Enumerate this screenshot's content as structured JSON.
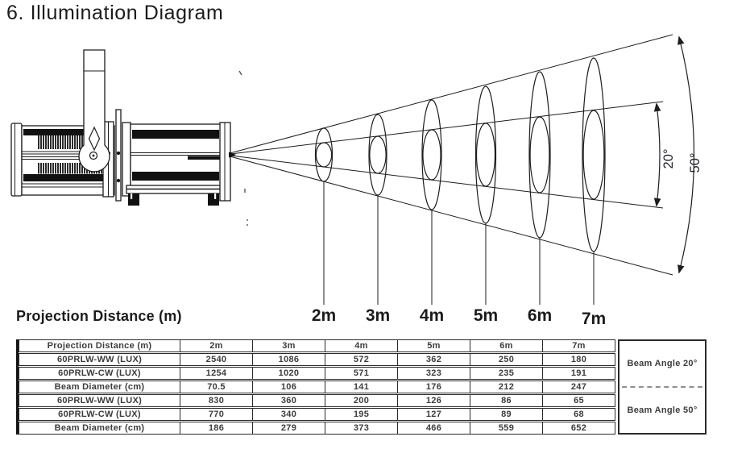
{
  "page": {
    "title": "6. Illumination Diagram"
  },
  "diagram": {
    "projection_distance_label": "Projection Distance (m)",
    "distance_labels": [
      "2m",
      "3m",
      "4m",
      "5m",
      "6m",
      "7m"
    ],
    "beam_angle_inner_label": "20°",
    "beam_angle_outer_label": "50°",
    "fixture": "profile-spotlight-side-view",
    "line_color": "#1d1d1d"
  },
  "table": {
    "header": [
      "Projection Distance (m)",
      "2m",
      "3m",
      "4m",
      "5m",
      "6m",
      "7m"
    ],
    "rows": [
      {
        "label": "60PRLW-WW (LUX)",
        "values": [
          "2540",
          "1086",
          "572",
          "362",
          "250",
          "180"
        ]
      },
      {
        "label": "60PRLW-CW (LUX)",
        "values": [
          "1254",
          "1020",
          "571",
          "323",
          "235",
          "191"
        ]
      },
      {
        "label": "Beam Diameter (cm)",
        "values": [
          "70.5",
          "106",
          "141",
          "176",
          "212",
          "247"
        ]
      },
      {
        "label": "60PRLW-WW (LUX)",
        "values": [
          "830",
          "360",
          "200",
          "126",
          "86",
          "65"
        ]
      },
      {
        "label": "60PRLW-CW (LUX)",
        "values": [
          "770",
          "340",
          "195",
          "127",
          "89",
          "68"
        ]
      },
      {
        "label": "Beam Diameter (cm)",
        "values": [
          "186",
          "279",
          "373",
          "466",
          "559",
          "652"
        ]
      }
    ],
    "beam_angle_top": "Beam Angle 20°",
    "beam_angle_bottom": "Beam Angle 50°"
  }
}
